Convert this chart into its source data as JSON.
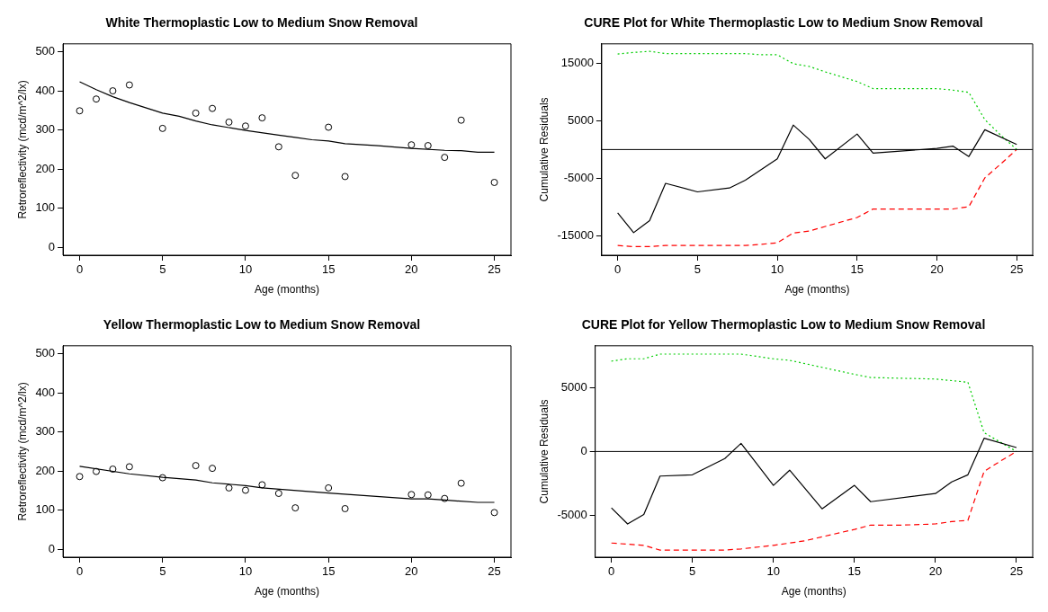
{
  "chart_data": [
    {
      "type": "scatter",
      "title": "White Thermoplastic Low to Medium Snow Removal",
      "xlabel": "Age (months)",
      "ylabel": "Retroreflectivity (mcd/m^2/lx)",
      "x": [
        0,
        1,
        2,
        3,
        5,
        7,
        8,
        9,
        10,
        11,
        12,
        13,
        15,
        16,
        20,
        21,
        22,
        23,
        25
      ],
      "xlim": [
        -1,
        26
      ],
      "ylim": [
        -20,
        520
      ],
      "xticks": [
        0,
        5,
        10,
        15,
        20,
        25
      ],
      "yticks": [
        0,
        100,
        200,
        300,
        400,
        500
      ],
      "grid": false,
      "legend": false,
      "series": [
        {
          "type": "scatter",
          "marker": "circle",
          "color": "#000000",
          "values": [
            349,
            379,
            400,
            415,
            304,
            343,
            355,
            320,
            310,
            331,
            257,
            184,
            307,
            181,
            262,
            260,
            230,
            325,
            166
          ]
        },
        {
          "type": "line",
          "marker": "none",
          "line_style": "solid",
          "color": "#000000",
          "x": [
            0,
            1,
            2,
            3,
            5,
            6,
            7,
            8,
            10,
            12,
            13,
            14,
            15,
            16,
            18,
            20,
            22,
            23,
            24,
            25
          ],
          "values": [
            423,
            403,
            385,
            370,
            343,
            335,
            323,
            313,
            299,
            287,
            281,
            275,
            272,
            265,
            260,
            253,
            248,
            247,
            243,
            243
          ]
        }
      ]
    },
    {
      "type": "line",
      "title": "CURE Plot for White Thermoplastic Low to Medium Snow Removal",
      "xlabel": "Age (months)",
      "ylabel": "Cumulative Residuals",
      "xlim": [
        -1,
        26
      ],
      "ylim": [
        -18300,
        18300
      ],
      "xticks": [
        0,
        5,
        10,
        15,
        20,
        25
      ],
      "yticks": [
        -15000,
        -5000,
        5000,
        15000
      ],
      "grid": false,
      "legend": false,
      "marker": "none",
      "ref_lines": [
        {
          "axis": "y",
          "value": 0,
          "color": "#000000",
          "line_style": "solid"
        }
      ],
      "series": [
        {
          "color": "#000000",
          "line_style": "solid",
          "x": [
            0,
            1,
            2,
            3,
            5,
            7,
            8,
            10,
            11,
            12,
            13,
            15,
            16,
            20,
            21,
            22,
            23,
            25
          ],
          "values": [
            -10960,
            -14390,
            -12300,
            -5850,
            -7330,
            -6660,
            -5310,
            -1610,
            4240,
            1750,
            -1610,
            2690,
            -610,
            200,
            600,
            -1210,
            3430,
            870
          ]
        },
        {
          "color": "#00cd00",
          "line_style": "dotted",
          "x": [
            0,
            1,
            2,
            3,
            8,
            9,
            10,
            11,
            12,
            13,
            15,
            16,
            20,
            21,
            22,
            23,
            24,
            25
          ],
          "values": [
            16540,
            16810,
            17010,
            16610,
            16610,
            16410,
            16410,
            14860,
            14390,
            13450,
            11770,
            10560,
            10560,
            10290,
            9890,
            5180,
            2490,
            0
          ]
        },
        {
          "color": "#ff0000",
          "line_style": "dashed",
          "x": [
            0,
            1,
            2,
            3,
            8,
            9,
            10,
            11,
            12,
            13,
            15,
            16,
            20,
            21,
            22,
            23,
            24,
            25
          ],
          "values": [
            -16610,
            -16810,
            -16810,
            -16610,
            -16610,
            -16410,
            -16140,
            -14460,
            -14120,
            -13320,
            -11770,
            -10290,
            -10290,
            -10290,
            -9890,
            -4910,
            -2490,
            0
          ]
        }
      ]
    },
    {
      "type": "scatter",
      "title": "Yellow Thermoplastic Low to Medium Snow Removal",
      "xlabel": "Age (months)",
      "ylabel": "Retroreflectivity (mcd/m^2/lx)",
      "x": [
        0,
        1,
        2,
        3,
        5,
        7,
        8,
        9,
        10,
        11,
        12,
        13,
        15,
        16,
        20,
        21,
        22,
        23,
        25
      ],
      "xlim": [
        -1,
        26
      ],
      "ylim": [
        -20,
        520
      ],
      "xticks": [
        0,
        5,
        10,
        15,
        20,
        25
      ],
      "yticks": [
        0,
        100,
        200,
        300,
        400,
        500
      ],
      "grid": false,
      "legend": false,
      "series": [
        {
          "type": "scatter",
          "marker": "circle",
          "color": "#000000",
          "values": [
            186,
            199,
            205,
            211,
            183,
            214,
            207,
            157,
            151,
            165,
            143,
            106,
            157,
            104,
            140,
            139,
            130,
            169,
            94
          ]
        },
        {
          "type": "line",
          "marker": "none",
          "line_style": "solid",
          "color": "#000000",
          "x": [
            0,
            3,
            5,
            7,
            8,
            10,
            11,
            15,
            20,
            21,
            22,
            24,
            25
          ],
          "values": [
            212,
            193,
            184,
            177,
            170,
            163,
            157,
            144,
            129,
            129,
            126,
            120,
            120
          ]
        }
      ]
    },
    {
      "type": "line",
      "title": "CURE Plot for Yellow Thermoplastic Low to Medium Snow Removal",
      "xlabel": "Age (months)",
      "ylabel": "Cumulative Residuals",
      "xlim": [
        -1,
        26
      ],
      "ylim": [
        -8300,
        8300
      ],
      "xticks": [
        0,
        5,
        10,
        15,
        20,
        25
      ],
      "yticks": [
        -5000,
        0,
        5000
      ],
      "grid": false,
      "legend": false,
      "marker": "none",
      "ref_lines": [
        {
          "axis": "y",
          "value": 0,
          "color": "#000000",
          "line_style": "solid"
        }
      ],
      "series": [
        {
          "color": "#000000",
          "line_style": "solid",
          "x": [
            0,
            1,
            2,
            3,
            5,
            7,
            8,
            10,
            11,
            13,
            15,
            16,
            20,
            21,
            22,
            23,
            25
          ],
          "values": [
            -4430,
            -5690,
            -4950,
            -1930,
            -1830,
            -550,
            640,
            -2660,
            -1470,
            -4500,
            -2660,
            -3940,
            -3300,
            -2390,
            -1830,
            1040,
            310
          ]
        },
        {
          "color": "#00cd00",
          "line_style": "dotted",
          "x": [
            0,
            1,
            2,
            3,
            8,
            10,
            11,
            13,
            15,
            16,
            18,
            20,
            21,
            22,
            23,
            25
          ],
          "values": [
            7100,
            7280,
            7280,
            7650,
            7650,
            7280,
            7160,
            6610,
            6060,
            5810,
            5750,
            5690,
            5570,
            5440,
            1470,
            0
          ]
        },
        {
          "color": "#ff0000",
          "line_style": "dashed",
          "x": [
            0,
            1,
            2,
            3,
            7,
            8,
            10,
            11,
            12,
            13,
            15,
            16,
            18,
            20,
            21,
            22,
            23,
            24,
            25
          ],
          "values": [
            -7190,
            -7280,
            -7370,
            -7740,
            -7740,
            -7650,
            -7370,
            -7190,
            -7000,
            -6700,
            -6120,
            -5780,
            -5780,
            -5690,
            -5500,
            -5410,
            -1560,
            -760,
            0
          ]
        }
      ]
    }
  ]
}
